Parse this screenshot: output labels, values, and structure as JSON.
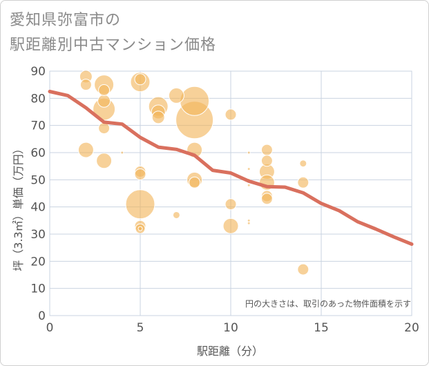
{
  "title_lines": [
    "愛知県弥富市の",
    "駅距離別中古マンション価格"
  ],
  "chart_data": {
    "type": "scatter",
    "title": "愛知県弥富市の駅距離別中古マンション価格",
    "xlabel": "駅距離（分）",
    "ylabel": "坪（3.3㎡）単価（万円）",
    "xlim": [
      0,
      20
    ],
    "ylim": [
      0,
      90
    ],
    "xticks": [
      0,
      5,
      10,
      15,
      20
    ],
    "yticks": [
      0,
      10,
      20,
      30,
      40,
      50,
      60,
      70,
      80,
      90
    ],
    "grid": true,
    "note": "円の大きさは、取引のあった物件面積を示す",
    "colors": {
      "bubble": "#f2b45a",
      "line": "#d9705e",
      "grid": "#c9d3e0",
      "axis_text": "#555555"
    },
    "bubbles": [
      {
        "x": 2,
        "y": 88,
        "r": 9
      },
      {
        "x": 2,
        "y": 85,
        "r": 8
      },
      {
        "x": 2,
        "y": 61,
        "r": 11
      },
      {
        "x": 3,
        "y": 85,
        "r": 14
      },
      {
        "x": 3,
        "y": 83,
        "r": 8
      },
      {
        "x": 3,
        "y": 79,
        "r": 9
      },
      {
        "x": 3,
        "y": 76,
        "r": 16
      },
      {
        "x": 3,
        "y": 69,
        "r": 8
      },
      {
        "x": 3,
        "y": 57,
        "r": 11
      },
      {
        "x": 4,
        "y": 60,
        "r": 2
      },
      {
        "x": 5,
        "y": 87,
        "r": 8
      },
      {
        "x": 5,
        "y": 86,
        "r": 14
      },
      {
        "x": 5,
        "y": 53,
        "r": 8
      },
      {
        "x": 5,
        "y": 52,
        "r": 8
      },
      {
        "x": 5,
        "y": 41,
        "r": 21
      },
      {
        "x": 5,
        "y": 33,
        "r": 8
      },
      {
        "x": 5,
        "y": 32,
        "r": 7
      },
      {
        "x": 5,
        "y": 32,
        "r": 3
      },
      {
        "x": 6,
        "y": 77,
        "r": 14
      },
      {
        "x": 6,
        "y": 75,
        "r": 10
      },
      {
        "x": 6,
        "y": 73,
        "r": 9
      },
      {
        "x": 7,
        "y": 81,
        "r": 11
      },
      {
        "x": 7,
        "y": 37,
        "r": 5
      },
      {
        "x": 8,
        "y": 79,
        "r": 21
      },
      {
        "x": 8,
        "y": 72,
        "r": 27
      },
      {
        "x": 8,
        "y": 61,
        "r": 11
      },
      {
        "x": 8,
        "y": 50,
        "r": 11
      },
      {
        "x": 8,
        "y": 49,
        "r": 8
      },
      {
        "x": 10,
        "y": 74,
        "r": 8
      },
      {
        "x": 10,
        "y": 41,
        "r": 8
      },
      {
        "x": 10,
        "y": 33,
        "r": 11
      },
      {
        "x": 11,
        "y": 60,
        "r": 2
      },
      {
        "x": 11,
        "y": 54,
        "r": 2
      },
      {
        "x": 11,
        "y": 50,
        "r": 2
      },
      {
        "x": 11,
        "y": 48,
        "r": 2
      },
      {
        "x": 11,
        "y": 35,
        "r": 2
      },
      {
        "x": 11,
        "y": 34,
        "r": 2
      },
      {
        "x": 12,
        "y": 61,
        "r": 8
      },
      {
        "x": 12,
        "y": 57,
        "r": 8
      },
      {
        "x": 12,
        "y": 53,
        "r": 11
      },
      {
        "x": 12,
        "y": 49,
        "r": 11
      },
      {
        "x": 12,
        "y": 44,
        "r": 8
      },
      {
        "x": 12,
        "y": 43,
        "r": 8
      },
      {
        "x": 14,
        "y": 56,
        "r": 5
      },
      {
        "x": 14,
        "y": 49,
        "r": 8
      },
      {
        "x": 14,
        "y": 17,
        "r": 8
      }
    ],
    "trend": {
      "x": [
        0,
        1,
        2,
        3,
        4,
        5,
        6,
        7,
        8,
        9,
        10,
        11,
        12,
        13,
        14,
        15,
        16,
        17,
        18,
        19,
        20
      ],
      "y": [
        82.5,
        81,
        76.5,
        71.2,
        70.5,
        65.6,
        62,
        61.2,
        59,
        53.5,
        52.5,
        49.5,
        47.5,
        47.3,
        45.2,
        41.3,
        38.6,
        34.6,
        31.9,
        29,
        26.3
      ]
    }
  }
}
